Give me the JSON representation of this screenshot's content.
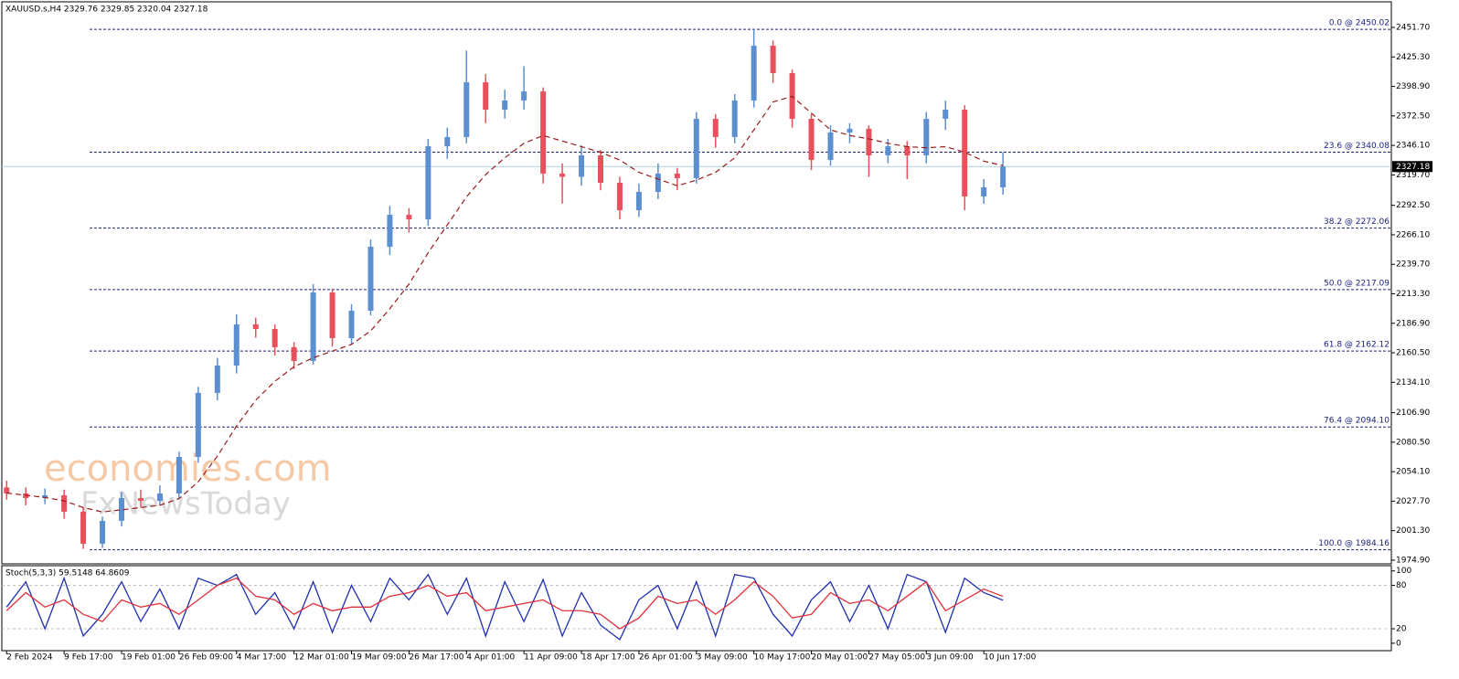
{
  "watermark": [
    "economies.com",
    "FxNewsToday"
  ],
  "chart_data": [
    {
      "type": "candlestick",
      "title": "XAUUSD.s,H4  2329.76 2329.85 2320.04 2327.18",
      "open": [
        2040,
        2034.6,
        2030.5,
        2033,
        2018.3,
        1989.6,
        2010.1,
        2030.5,
        2028,
        2034.6,
        2067.3,
        2124.6,
        2149.1,
        2185.9,
        2181.8,
        2165.5,
        2153.2,
        2214.5,
        2173.6,
        2198.2,
        2255.4,
        2284,
        2279.9,
        2345.4,
        2353.6,
        2402.6,
        2378.1,
        2386.3,
        2394.4,
        2320.9,
        2318,
        2337.2,
        2312.7,
        2288.1,
        2304.5,
        2320.9,
        2316.8,
        2369.9,
        2353.6,
        2386.3,
        2435.3,
        2410.8,
        2369.9,
        2333.1,
        2357.7,
        2361,
        2337.2,
        2345.4,
        2337.2,
        2369.9,
        2378.1,
        2300.4,
        2308.6
      ],
      "high": [
        2046,
        2040,
        2039,
        2038,
        2022,
        2014,
        2036,
        2038,
        2042,
        2072,
        2130,
        2156,
        2195,
        2192,
        2186,
        2170,
        2222,
        2218,
        2204,
        2262,
        2292,
        2290,
        2352,
        2362,
        2431,
        2410,
        2396,
        2417,
        2398,
        2330,
        2346,
        2342,
        2318,
        2312,
        2330,
        2326,
        2376,
        2374,
        2392,
        2450,
        2440,
        2414,
        2374,
        2364,
        2366,
        2364,
        2352,
        2350,
        2376,
        2386,
        2382,
        2316,
        2340
      ],
      "low": [
        2029,
        2024,
        2025,
        2012,
        1985,
        1986,
        2005,
        2022,
        2024,
        2030,
        2062,
        2118,
        2142,
        2174,
        2158,
        2146,
        2150,
        2166,
        2168,
        2194,
        2248,
        2268,
        2274,
        2334,
        2348,
        2366,
        2370,
        2378,
        2312,
        2294,
        2310,
        2306,
        2280,
        2282,
        2298,
        2306,
        2312,
        2344,
        2348,
        2380,
        2402,
        2362,
        2324,
        2328,
        2348,
        2318,
        2330,
        2316,
        2330,
        2360,
        2288,
        2294,
        2302
      ],
      "close": [
        2034.6,
        2030.5,
        2033,
        2018.3,
        1989.6,
        2010.1,
        2030.5,
        2028,
        2034.6,
        2067.3,
        2124.6,
        2149.1,
        2185.9,
        2181.8,
        2165.5,
        2153.2,
        2214.5,
        2173.6,
        2198.2,
        2255.4,
        2284,
        2279.9,
        2345.4,
        2353.6,
        2402.6,
        2378.1,
        2386.3,
        2394.4,
        2320.9,
        2318,
        2337.2,
        2312.7,
        2288.1,
        2304.5,
        2320.9,
        2316.8,
        2369.9,
        2353.6,
        2386.3,
        2435.3,
        2410.8,
        2369.9,
        2333.1,
        2357.7,
        2361,
        2337.2,
        2345.4,
        2337.2,
        2369.9,
        2378.1,
        2300.4,
        2308.6,
        2327.18
      ],
      "up_color": "#5b8fd0",
      "down_color": "#e8505b",
      "ma": {
        "color": "#9b1b1b",
        "values": [
          2035,
          2033,
          2031,
          2028,
          2022,
          2018,
          2020,
          2022,
          2024,
          2030,
          2045,
          2068,
          2095,
          2118,
          2135,
          2148,
          2156,
          2162,
          2168,
          2180,
          2200,
          2222,
          2250,
          2275,
          2300,
          2320,
          2335,
          2348,
          2355,
          2350,
          2345,
          2340,
          2333,
          2322,
          2316,
          2310,
          2315,
          2322,
          2335,
          2360,
          2385,
          2390,
          2375,
          2360,
          2355,
          2352,
          2348,
          2345,
          2344,
          2345,
          2340,
          2332,
          2328
        ]
      },
      "fib_levels": [
        {
          "value": 2450.02,
          "label": "0.0 @ 2450.02"
        },
        {
          "value": 2340.08,
          "label": "23.6 @ 2340.08"
        },
        {
          "value": 2272.06,
          "label": "38.2 @ 2272.06"
        },
        {
          "value": 2217.09,
          "label": "50.0 @ 2217.09"
        },
        {
          "value": 2162.12,
          "label": "61.8 @ 2162.12"
        },
        {
          "value": 2094.1,
          "label": "76.4 @ 2094.10"
        },
        {
          "value": 1984.16,
          "label": "100.0 @ 1984.16"
        }
      ],
      "fib_color": "#1a237e",
      "current_price": {
        "value": 2327.18,
        "label": "2327.18"
      },
      "ylim": [
        1971.6,
        2464.8
      ],
      "yticks": [
        {
          "value": 2451.7,
          "label": "2451.70"
        },
        {
          "value": 2425.3,
          "label": "2425.30"
        },
        {
          "value": 2398.9,
          "label": "2398.90"
        },
        {
          "value": 2372.5,
          "label": "2372.50"
        },
        {
          "value": 2346.1,
          "label": "2346.10"
        },
        {
          "value": 2319.7,
          "label": "2319.70"
        },
        {
          "value": 2292.5,
          "label": "2292.50"
        },
        {
          "value": 2266.1,
          "label": "2266.10"
        },
        {
          "value": 2239.7,
          "label": "2239.70"
        },
        {
          "value": 2213.3,
          "label": "2213.30"
        },
        {
          "value": 2186.9,
          "label": "2186.90"
        },
        {
          "value": 2160.5,
          "label": "2160.50"
        },
        {
          "value": 2134.1,
          "label": "2134.10"
        },
        {
          "value": 2106.9,
          "label": "2106.90"
        },
        {
          "value": 2080.5,
          "label": "2080.50"
        },
        {
          "value": 2054.1,
          "label": "2054.10"
        },
        {
          "value": 2027.7,
          "label": "2027.70"
        },
        {
          "value": 2001.3,
          "label": "2001.30"
        },
        {
          "value": 1974.9,
          "label": "1974.90"
        }
      ],
      "xlim": [
        -0.25,
        72.27
      ],
      "xticks": [
        {
          "value": 0,
          "label": "2 Feb 2024"
        },
        {
          "value": 3,
          "label": "9 Feb 17:00"
        },
        {
          "value": 6,
          "label": "19 Feb 01:00"
        },
        {
          "value": 9,
          "label": "26 Feb 09:00"
        },
        {
          "value": 12,
          "label": "4 Mar 17:00"
        },
        {
          "value": 15,
          "label": "12 Mar 01:00"
        },
        {
          "value": 18,
          "label": "19 Mar 09:00"
        },
        {
          "value": 21,
          "label": "26 Mar 17:00"
        },
        {
          "value": 24,
          "label": "4 Apr 01:00"
        },
        {
          "value": 27,
          "label": "11 Apr 09:00"
        },
        {
          "value": 30,
          "label": "18 Apr 17:00"
        },
        {
          "value": 33,
          "label": "26 Apr 01:00"
        },
        {
          "value": 36,
          "label": "3 May 09:00"
        },
        {
          "value": 39,
          "label": "10 May 17:00"
        },
        {
          "value": 42,
          "label": "20 May 01:00"
        },
        {
          "value": 45,
          "label": "27 May 05:00"
        },
        {
          "value": 48,
          "label": "3 Jun 09:00"
        },
        {
          "value": 51,
          "label": "10 Jun 17:00"
        }
      ]
    },
    {
      "type": "line",
      "title": "Stoch(5,3,3) 59.5148 64.8609",
      "series": [
        {
          "color": "#1f2fb0",
          "values": [
            50,
            85,
            20,
            90,
            10,
            40,
            85,
            30,
            75,
            20,
            90,
            80,
            95,
            40,
            70,
            20,
            85,
            15,
            80,
            30,
            90,
            60,
            95,
            40,
            90,
            10,
            85,
            30,
            88,
            10,
            70,
            25,
            5,
            60,
            80,
            20,
            85,
            10,
            95,
            90,
            40,
            10,
            60,
            85,
            30,
            80,
            20,
            95,
            85,
            15,
            90,
            70,
            59.5148
          ]
        },
        {
          "color": "#e0303a",
          "values": [
            45,
            70,
            50,
            60,
            40,
            30,
            60,
            50,
            55,
            40,
            60,
            80,
            90,
            65,
            60,
            40,
            55,
            45,
            50,
            50,
            65,
            70,
            80,
            65,
            70,
            45,
            50,
            55,
            60,
            45,
            45,
            40,
            20,
            35,
            65,
            55,
            60,
            40,
            60,
            85,
            65,
            35,
            40,
            70,
            55,
            60,
            45,
            65,
            85,
            45,
            60,
            75,
            64.8609
          ]
        }
      ],
      "levels": [
        80,
        20
      ],
      "ylim": [
        -9,
        106
      ],
      "yticks": [
        100,
        80,
        20,
        0
      ],
      "xlim": [
        -0.25,
        72.27
      ]
    }
  ]
}
